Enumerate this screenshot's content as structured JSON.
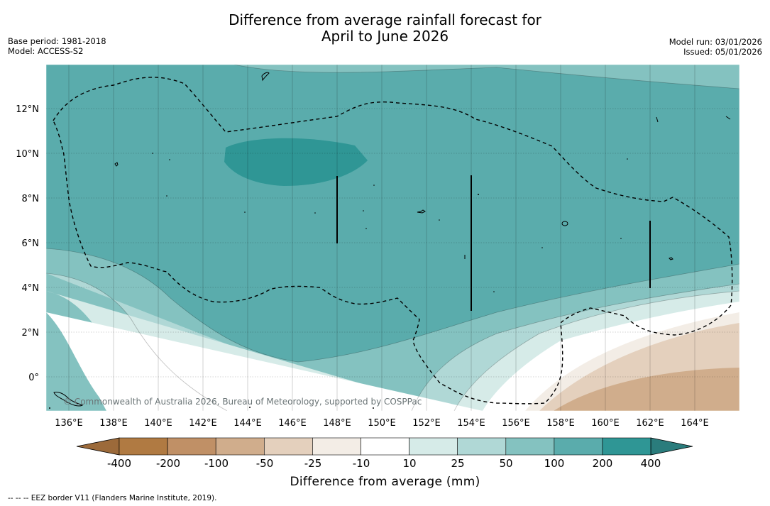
{
  "header": {
    "title_line1": "Difference from average rainfall forecast for",
    "title_line2": "April to June 2026",
    "base_period": "Base period: 1981-2018",
    "model": "Model: ACCESS-S2",
    "model_run": "Model run: 03/01/2026",
    "issued": "Issued: 05/01/2026"
  },
  "map": {
    "lon_labels": [
      "136°E",
      "138°E",
      "140°E",
      "142°E",
      "144°E",
      "146°E",
      "148°E",
      "150°E",
      "152°E",
      "154°E",
      "156°E",
      "158°E",
      "160°E",
      "162°E",
      "164°E"
    ],
    "lat_labels": [
      "12°N",
      "10°N",
      "8°N",
      "6°N",
      "4°N",
      "2°N",
      "0°"
    ],
    "watermark": "© Commonwealth of Australia 2026, Bureau of Meteorology, supported by COSPPac"
  },
  "colorbar": {
    "labels": [
      "-400",
      "-200",
      "-100",
      "-50",
      "-25",
      "-10",
      "10",
      "25",
      "50",
      "100",
      "200",
      "400"
    ],
    "colors": [
      "#9c6a3a",
      "#b07a42",
      "#c09066",
      "#d0ad8c",
      "#e4d0bd",
      "#f3ede6",
      "#ffffff",
      "#d6ebe8",
      "#b0d8d6",
      "#84c2c0",
      "#5aacac",
      "#2f9695",
      "#2a7c7c"
    ],
    "title": "Difference from average (mm)"
  },
  "footnote": "--  --  -- EEZ border V11 (Flanders Marine Institute, 2019)."
}
